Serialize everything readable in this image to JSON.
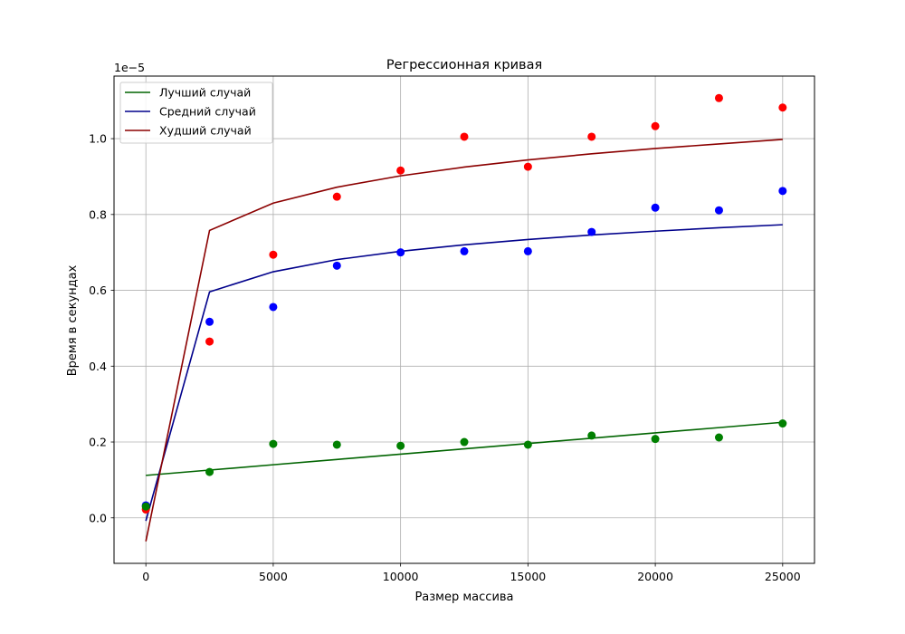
{
  "chart_data": {
    "type": "scatter",
    "title": "Регрессионная кривая",
    "xlabel": "Размер массива",
    "ylabel": "Время в секундах",
    "y_offset_label": "1e−5",
    "xlim": [
      -1250,
      26250
    ],
    "ylim": [
      -0.12,
      1.165
    ],
    "x_ticks": [
      0,
      5000,
      10000,
      15000,
      20000,
      25000
    ],
    "y_ticks": [
      0.0,
      0.2,
      0.4,
      0.6,
      0.8,
      1.0
    ],
    "grid": true,
    "legend_position": "top-left",
    "x": [
      0,
      2500,
      5000,
      7500,
      10000,
      12500,
      15000,
      17500,
      20000,
      22500,
      25000
    ],
    "scatter_series": [
      {
        "color": "#0000ff",
        "values": [
          0.033,
          0.517,
          0.556,
          0.665,
          0.7,
          0.703,
          0.703,
          0.754,
          0.818,
          0.811,
          0.862
        ]
      },
      {
        "color": "#ff0000",
        "values": [
          0.022,
          0.465,
          0.694,
          0.847,
          0.916,
          1.005,
          0.926,
          1.005,
          1.033,
          1.107,
          1.082
        ]
      },
      {
        "color": "#008000",
        "values": [
          0.03,
          0.121,
          0.195,
          0.193,
          0.19,
          0.2,
          0.193,
          0.217,
          0.208,
          0.212,
          0.249
        ]
      }
    ],
    "series": [
      {
        "name": "Лучший случай",
        "color": "#006400",
        "values": [
          0.112,
          0.126,
          0.14,
          0.154,
          0.168,
          0.182,
          0.196,
          0.21,
          0.224,
          0.238,
          0.252
        ]
      },
      {
        "name": "Средний случай",
        "color": "#00008b",
        "values": [
          -0.008,
          0.596,
          0.649,
          0.681,
          0.703,
          0.72,
          0.734,
          0.746,
          0.756,
          0.765,
          0.773
        ]
      },
      {
        "name": "Худший случай",
        "color": "#8b0000",
        "values": [
          -0.062,
          0.758,
          0.83,
          0.872,
          0.902,
          0.925,
          0.944,
          0.96,
          0.974,
          0.986,
          0.998
        ]
      }
    ]
  }
}
